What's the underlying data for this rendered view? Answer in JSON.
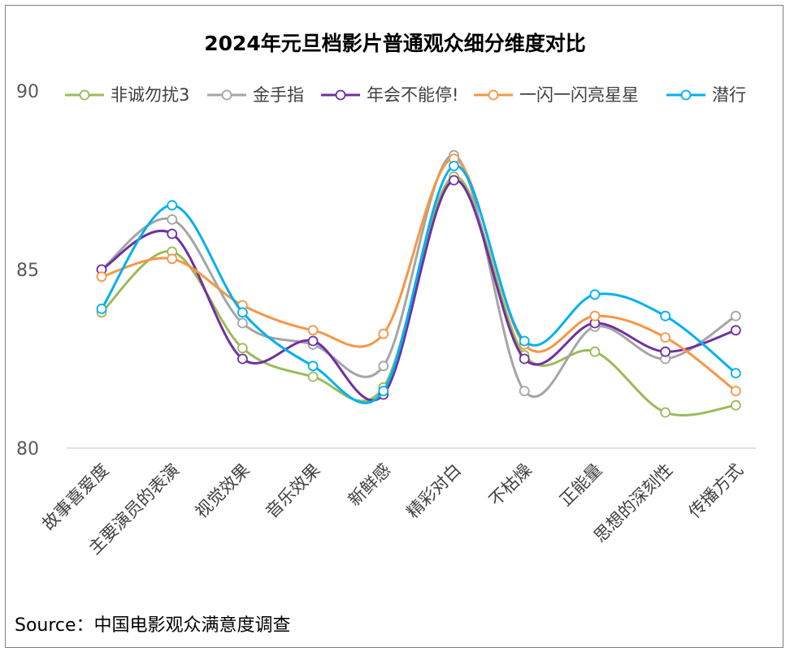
{
  "chart_data": {
    "type": "line",
    "title": "2024年元旦档影片普通观众细分维度对比",
    "categories": [
      "故事喜爱度",
      "主要演员的表演",
      "视觉效果",
      "音乐效果",
      "新鲜感",
      "精彩对白",
      "不枯燥",
      "正能量",
      "思想的深刻性",
      "传播方式"
    ],
    "ylim": [
      80,
      90
    ],
    "yticks": [
      "80",
      "85",
      "90"
    ],
    "grid": false,
    "legend_position": "top",
    "smooth": true,
    "series": [
      {
        "name": "非诚勿扰3",
        "color": "#9bbb59",
        "values": [
          83.8,
          85.5,
          82.8,
          82.0,
          81.7,
          87.6,
          82.6,
          82.7,
          81.0,
          81.2
        ]
      },
      {
        "name": "金手指",
        "color": "#a5a5a5",
        "values": [
          85.0,
          86.4,
          83.5,
          82.9,
          82.3,
          88.2,
          81.6,
          83.4,
          82.5,
          83.7
        ]
      },
      {
        "name": "年会不能停!",
        "color": "#7030a0",
        "values": [
          85.0,
          86.0,
          82.5,
          83.0,
          81.5,
          87.5,
          82.5,
          83.5,
          82.7,
          83.3
        ]
      },
      {
        "name": "一闪一闪亮星星",
        "color": "#f79646",
        "values": [
          84.8,
          85.3,
          84.0,
          83.3,
          83.2,
          88.1,
          82.9,
          83.7,
          83.1,
          81.6
        ]
      },
      {
        "name": "潜行",
        "color": "#00b0f0",
        "values": [
          83.9,
          86.8,
          83.8,
          82.3,
          81.6,
          87.9,
          83.0,
          84.3,
          83.7,
          82.1
        ]
      }
    ]
  },
  "source": "Source：中国电影观众满意度调查"
}
